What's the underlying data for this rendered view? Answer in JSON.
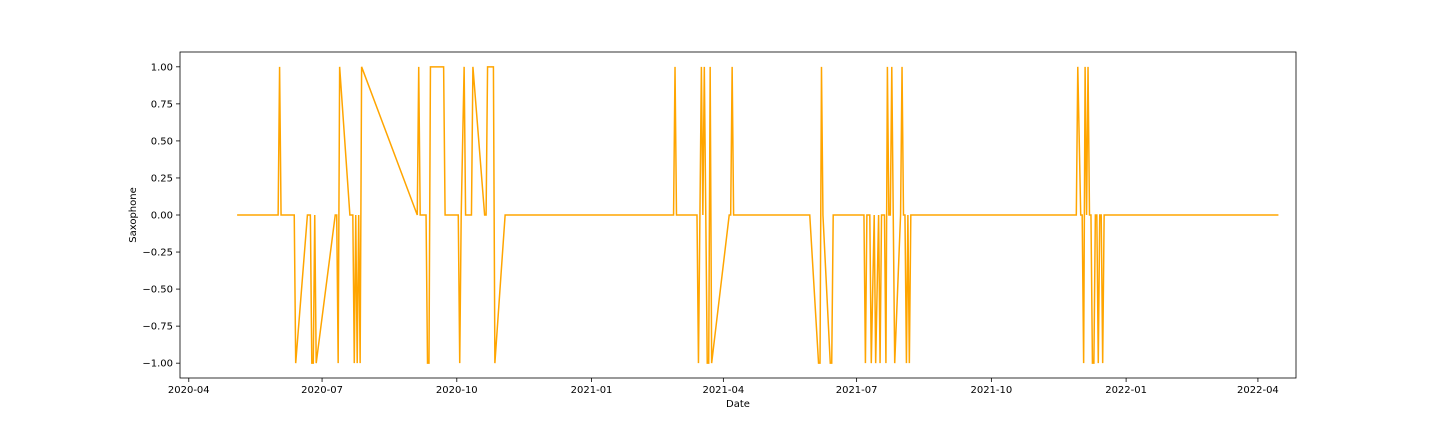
{
  "chart_data": {
    "type": "line",
    "title": "",
    "xlabel": "Date",
    "ylabel": "Saxophone",
    "x_tick_labels": [
      "2020-04",
      "2020-07",
      "2020-10",
      "2021-01",
      "2021-04",
      "2021-07",
      "2021-10",
      "2022-01",
      "2022-04"
    ],
    "y_tick_labels": [
      "1.00",
      "0.75",
      "0.50",
      "0.25",
      "0.00",
      "−0.25",
      "−0.50",
      "−0.75",
      "−1.00"
    ],
    "xlim": [
      "2020-03-26",
      "2022-04-27"
    ],
    "ylim": [
      -1.1,
      1.1
    ],
    "grid": false,
    "series": [
      {
        "color": "#ffa500",
        "x": [
          "2020-05-04",
          "2020-05-22",
          "2020-06-01",
          "2020-06-02",
          "2020-06-03",
          "2020-06-11",
          "2020-06-12",
          "2020-06-13",
          "2020-06-21",
          "2020-06-22",
          "2020-06-23",
          "2020-06-24",
          "2020-06-25",
          "2020-06-26",
          "2020-06-27",
          "2020-07-10",
          "2020-07-11",
          "2020-07-12",
          "2020-07-13",
          "2020-07-20",
          "2020-07-21",
          "2020-07-22",
          "2020-07-23",
          "2020-07-24",
          "2020-07-25",
          "2020-07-26",
          "2020-07-27",
          "2020-07-28",
          "2020-09-04",
          "2020-09-05",
          "2020-09-06",
          "2020-09-09",
          "2020-09-10",
          "2020-09-11",
          "2020-09-12",
          "2020-09-13",
          "2020-09-22",
          "2020-09-23",
          "2020-09-28",
          "2020-10-02",
          "2020-10-03",
          "2020-10-04",
          "2020-10-06",
          "2020-10-07",
          "2020-10-10",
          "2020-10-11",
          "2020-10-12",
          "2020-10-20",
          "2020-10-21",
          "2020-10-22",
          "2020-10-26",
          "2020-10-27",
          "2020-11-03",
          "2021-02-26",
          "2021-02-27",
          "2021-02-28",
          "2021-03-14",
          "2021-03-15",
          "2021-03-16",
          "2021-03-17",
          "2021-03-18",
          "2021-03-19",
          "2021-03-20",
          "2021-03-21",
          "2021-03-22",
          "2021-03-23",
          "2021-03-24",
          "2021-04-05",
          "2021-04-06",
          "2021-04-07",
          "2021-04-08",
          "2021-04-09",
          "2021-05-30",
          "2021-06-05",
          "2021-06-06",
          "2021-06-07",
          "2021-06-08",
          "2021-06-13",
          "2021-06-14",
          "2021-06-15",
          "2021-07-06",
          "2021-07-07",
          "2021-07-08",
          "2021-07-09",
          "2021-07-10",
          "2021-07-11",
          "2021-07-13",
          "2021-07-14",
          "2021-07-16",
          "2021-07-17",
          "2021-07-18",
          "2021-07-20",
          "2021-07-21",
          "2021-07-22",
          "2021-07-23",
          "2021-07-24",
          "2021-07-25",
          "2021-07-26",
          "2021-07-27",
          "2021-07-31",
          "2021-08-01",
          "2021-08-02",
          "2021-08-03",
          "2021-08-04",
          "2021-08-05",
          "2021-08-06",
          "2021-08-07",
          "2021-11-27",
          "2021-11-28",
          "2021-11-29",
          "2021-12-01",
          "2021-12-02",
          "2021-12-03",
          "2021-12-04",
          "2021-12-05",
          "2021-12-06",
          "2021-12-07",
          "2021-12-08",
          "2021-12-09",
          "2021-12-10",
          "2021-12-11",
          "2021-12-12",
          "2021-12-13",
          "2021-12-14",
          "2021-12-15",
          "2021-12-16",
          "2021-12-17",
          "2021-12-18",
          "2022-04-15"
        ],
        "y": [
          0,
          0,
          0,
          1,
          0,
          0,
          0,
          -1,
          0,
          0,
          0,
          -1,
          -1,
          0,
          -1,
          0,
          0,
          -1,
          1,
          0,
          0,
          0,
          -1,
          0,
          -1,
          0,
          -1,
          1,
          0,
          1,
          0,
          0,
          0,
          -1,
          -1,
          1,
          1,
          0,
          0,
          0,
          -1,
          0,
          1,
          0,
          0,
          0,
          1,
          0,
          0,
          1,
          1,
          -1,
          0,
          0,
          1,
          0,
          0,
          -1,
          0,
          1,
          0,
          1,
          0,
          -1,
          -1,
          1,
          -1,
          0,
          0,
          1,
          0,
          0,
          0,
          -1,
          -1,
          1,
          0,
          -1,
          -1,
          0,
          0,
          -1,
          0,
          0,
          0,
          -1,
          0,
          -1,
          0,
          -1,
          0,
          0,
          -1,
          1,
          0,
          0,
          1,
          0,
          -1,
          0,
          1,
          0,
          0,
          -1,
          0,
          -1,
          0,
          0,
          0,
          1,
          0,
          0,
          -1,
          1,
          0,
          1,
          0,
          0,
          -1,
          -1,
          0,
          0,
          -1,
          0,
          0,
          -1,
          0,
          0,
          0
        ]
      }
    ]
  }
}
